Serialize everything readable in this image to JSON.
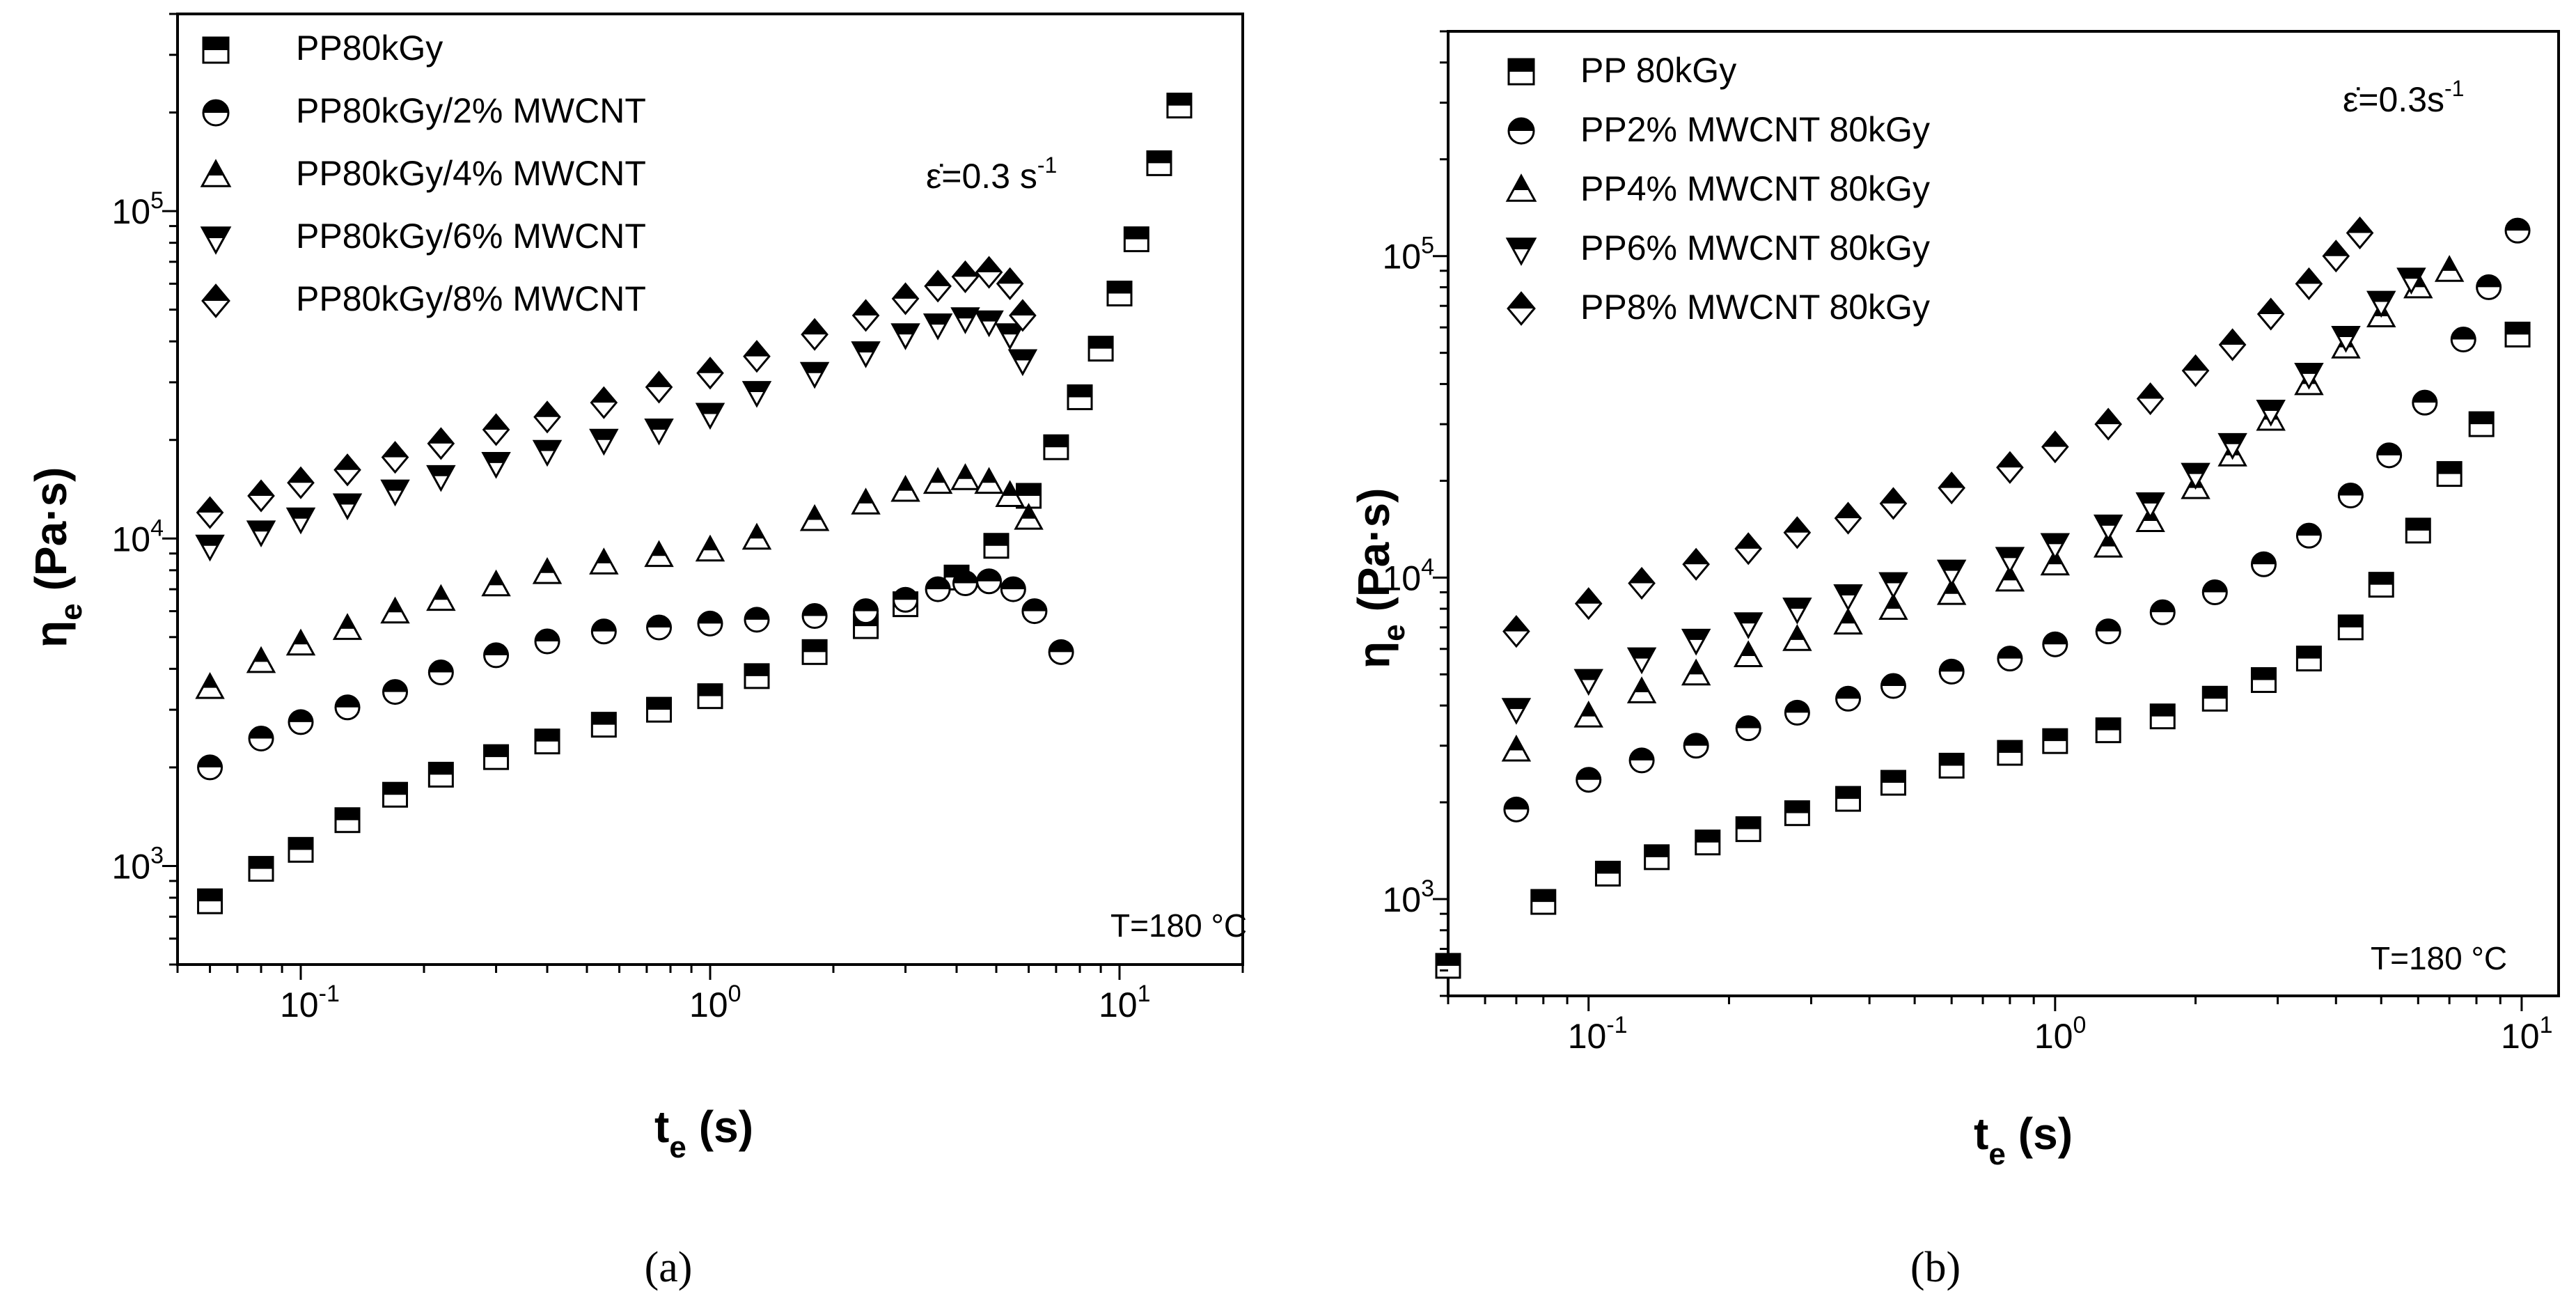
{
  "chart_data": [
    {
      "type": "scatter",
      "panel_label": "(a)",
      "xlabel_main": "t",
      "xlabel_sub": "e",
      "xlabel_unit": "(s)",
      "ylabel_main": "η",
      "ylabel_sub": "e",
      "ylabel_unit": "(Pa·s)",
      "xscale": "log",
      "yscale": "log",
      "xlim": [
        0.05,
        20
      ],
      "ylim": [
        500,
        400000
      ],
      "x_ticks": [
        {
          "value": 0.1,
          "base": "10",
          "exp": "-1"
        },
        {
          "value": 1,
          "base": "10",
          "exp": "0"
        },
        {
          "value": 10,
          "base": "10",
          "exp": "1"
        }
      ],
      "y_ticks": [
        {
          "value": 1000,
          "base": "10",
          "exp": "3"
        },
        {
          "value": 10000,
          "base": "10",
          "exp": "4"
        },
        {
          "value": 100000,
          "base": "10",
          "exp": "5"
        }
      ],
      "rate_label": "ε̇=0.3 s",
      "rate_exp": "-1",
      "temp_label": "T=180 °C",
      "legend_position": "top-left",
      "series": [
        {
          "name": "PP80kGy",
          "marker": "square",
          "x": [
            0.06,
            0.08,
            0.1,
            0.13,
            0.17,
            0.22,
            0.3,
            0.4,
            0.55,
            0.75,
            1.0,
            1.3,
            1.8,
            2.4,
            3.0,
            4.0,
            5.0,
            6.0,
            7.0,
            8.0,
            9.0,
            10.0,
            11.0,
            12.5,
            14.0
          ],
          "y": [
            780,
            980,
            1120,
            1380,
            1650,
            1900,
            2150,
            2400,
            2700,
            3000,
            3300,
            3800,
            4500,
            5400,
            6300,
            7600,
            9500,
            13500,
            19000,
            27000,
            38000,
            56000,
            82000,
            140000,
            210000
          ]
        },
        {
          "name": "PP80kGy/2% MWCNT",
          "marker": "circle",
          "x": [
            0.06,
            0.08,
            0.1,
            0.13,
            0.17,
            0.22,
            0.3,
            0.4,
            0.55,
            0.75,
            1.0,
            1.3,
            1.8,
            2.4,
            3.0,
            3.6,
            4.2,
            4.8,
            5.5,
            6.2,
            7.2
          ],
          "y": [
            2000,
            2450,
            2750,
            3050,
            3400,
            3900,
            4400,
            4850,
            5200,
            5350,
            5500,
            5650,
            5800,
            6000,
            6500,
            7000,
            7300,
            7400,
            7000,
            6000,
            4500
          ]
        },
        {
          "name": "PP80kGy/4% MWCNT",
          "marker": "triangle-up",
          "x": [
            0.06,
            0.08,
            0.1,
            0.13,
            0.17,
            0.22,
            0.3,
            0.4,
            0.55,
            0.75,
            1.0,
            1.3,
            1.8,
            2.4,
            3.0,
            3.6,
            4.2,
            4.8,
            5.4,
            6.0
          ],
          "y": [
            3500,
            4200,
            4750,
            5300,
            5950,
            6500,
            7200,
            7850,
            8400,
            8850,
            9200,
            10000,
            11400,
            12800,
            14000,
            14800,
            15200,
            14800,
            13500,
            11500
          ]
        },
        {
          "name": "PP80kGy/6% MWCNT",
          "marker": "triangle-down",
          "x": [
            0.06,
            0.08,
            0.1,
            0.13,
            0.17,
            0.22,
            0.3,
            0.4,
            0.55,
            0.75,
            1.0,
            1.3,
            1.8,
            2.4,
            3.0,
            3.6,
            4.2,
            4.8,
            5.4,
            5.8
          ],
          "y": [
            9500,
            10500,
            11500,
            12700,
            14000,
            15500,
            17000,
            18500,
            20000,
            21500,
            24000,
            28000,
            32000,
            37000,
            42000,
            45000,
            47000,
            46000,
            42000,
            35000
          ]
        },
        {
          "name": "PP80kGy/8% MWCNT",
          "marker": "diamond",
          "x": [
            0.06,
            0.08,
            0.1,
            0.13,
            0.17,
            0.22,
            0.3,
            0.4,
            0.55,
            0.75,
            1.0,
            1.3,
            1.8,
            2.4,
            3.0,
            3.6,
            4.2,
            4.8,
            5.4,
            5.8
          ],
          "y": [
            12000,
            13500,
            14800,
            16200,
            17700,
            19500,
            21500,
            23500,
            26000,
            29000,
            32000,
            36000,
            42000,
            48000,
            54000,
            59000,
            63000,
            65000,
            60000,
            48000
          ]
        }
      ]
    },
    {
      "type": "scatter",
      "panel_label": "(b)",
      "xlabel_main": "t",
      "xlabel_sub": "e",
      "xlabel_unit": "(s)",
      "ylabel_main": "η",
      "ylabel_sub": "e",
      "ylabel_unit": "(Pa·s)",
      "xscale": "log",
      "yscale": "log",
      "xlim": [
        0.05,
        12
      ],
      "ylim": [
        500,
        500000
      ],
      "x_ticks": [
        {
          "value": 0.1,
          "base": "10",
          "exp": "-1"
        },
        {
          "value": 1,
          "base": "10",
          "exp": "0"
        },
        {
          "value": 10,
          "base": "10",
          "exp": "1"
        }
      ],
      "y_ticks": [
        {
          "value": 1000,
          "base": "10",
          "exp": "3"
        },
        {
          "value": 10000,
          "base": "10",
          "exp": "4"
        },
        {
          "value": 100000,
          "base": "10",
          "exp": "5"
        }
      ],
      "rate_label": "ε̇=0.3s",
      "rate_exp": "-1",
      "temp_label": "T=180 °C",
      "legend_position": "top-left",
      "series": [
        {
          "name": "PP 80kGy",
          "marker": "square",
          "x": [
            0.05,
            0.08,
            0.11,
            0.14,
            0.18,
            0.22,
            0.28,
            0.36,
            0.45,
            0.6,
            0.8,
            1.0,
            1.3,
            1.7,
            2.2,
            2.8,
            3.5,
            4.3,
            5.0,
            6.0,
            7.0,
            8.2,
            9.8
          ],
          "y": [
            620,
            980,
            1200,
            1350,
            1500,
            1650,
            1850,
            2050,
            2300,
            2600,
            2850,
            3100,
            3350,
            3700,
            4200,
            4800,
            5600,
            7000,
            9500,
            14000,
            21000,
            30000,
            57000
          ]
        },
        {
          "name": "PP2% MWCNT 80kGy",
          "marker": "circle",
          "x": [
            0.07,
            0.1,
            0.13,
            0.17,
            0.22,
            0.28,
            0.36,
            0.45,
            0.6,
            0.8,
            1.0,
            1.3,
            1.7,
            2.2,
            2.8,
            3.5,
            4.3,
            5.2,
            6.2,
            7.5,
            8.5,
            9.8
          ],
          "y": [
            1900,
            2350,
            2700,
            3000,
            3400,
            3800,
            4200,
            4600,
            5100,
            5600,
            6200,
            6800,
            7800,
            9000,
            11000,
            13500,
            18000,
            24000,
            35000,
            55000,
            80000,
            120000
          ]
        },
        {
          "name": "PP4% MWCNT 80kGy",
          "marker": "triangle-up",
          "x": [
            0.07,
            0.1,
            0.13,
            0.17,
            0.22,
            0.28,
            0.36,
            0.45,
            0.6,
            0.8,
            1.0,
            1.3,
            1.6,
            2.0,
            2.4,
            2.9,
            3.5,
            4.2,
            5.0,
            6.0,
            7.0
          ],
          "y": [
            2900,
            3700,
            4400,
            5000,
            5700,
            6400,
            7200,
            8000,
            8900,
            9800,
            11000,
            12500,
            15000,
            19000,
            24000,
            31000,
            40000,
            52000,
            65000,
            80000,
            90000
          ]
        },
        {
          "name": "PP6% MWCNT 80kGy",
          "marker": "triangle-down",
          "x": [
            0.07,
            0.1,
            0.13,
            0.17,
            0.22,
            0.28,
            0.36,
            0.45,
            0.6,
            0.8,
            1.0,
            1.3,
            1.6,
            2.0,
            2.4,
            2.9,
            3.5,
            4.2,
            5.0,
            5.8
          ],
          "y": [
            3900,
            4800,
            5600,
            6400,
            7200,
            8000,
            8800,
            9600,
            10500,
            11500,
            12700,
            14500,
            17000,
            21000,
            26000,
            33000,
            43000,
            56000,
            72000,
            85000
          ]
        },
        {
          "name": "PP8% MWCNT 80kGy",
          "marker": "diamond",
          "x": [
            0.07,
            0.1,
            0.13,
            0.17,
            0.22,
            0.28,
            0.36,
            0.45,
            0.6,
            0.8,
            1.0,
            1.3,
            1.6,
            2.0,
            2.4,
            2.9,
            3.5,
            4.0,
            4.5
          ],
          "y": [
            6800,
            8300,
            9600,
            11000,
            12300,
            13800,
            15300,
            17000,
            19000,
            22000,
            25500,
            30000,
            36000,
            44000,
            53000,
            66000,
            82000,
            100000,
            118000
          ]
        }
      ]
    }
  ]
}
